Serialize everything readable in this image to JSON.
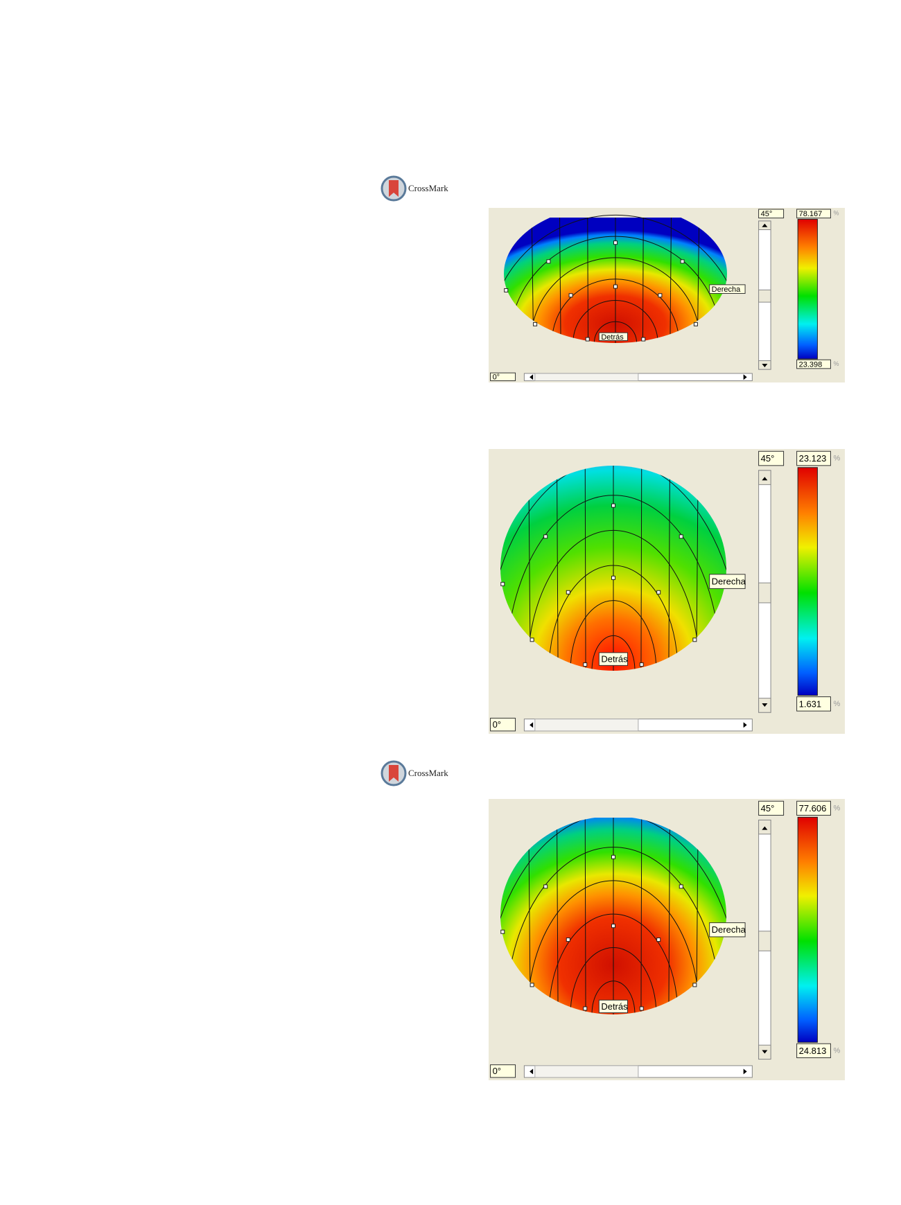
{
  "crossmarks": [
    "CrossMark",
    "CrossMark"
  ],
  "panels": [
    {
      "elevation_label": "45°",
      "max_value": 78.167,
      "min_value": 23.398,
      "unit": "%",
      "right_label": "Derecha",
      "back_label": "Detrás",
      "azimuth_label": "0°"
    },
    {
      "elevation_label": "45°",
      "max_value": 23.123,
      "min_value": 1.631,
      "unit": "%",
      "right_label": "Derecha",
      "back_label": "Detrás",
      "azimuth_label": "0°"
    },
    {
      "elevation_label": "45°",
      "max_value": 77.606,
      "min_value": 24.813,
      "unit": "%",
      "right_label": "Derecha",
      "back_label": "Detrás",
      "azimuth_label": "0°"
    }
  ]
}
